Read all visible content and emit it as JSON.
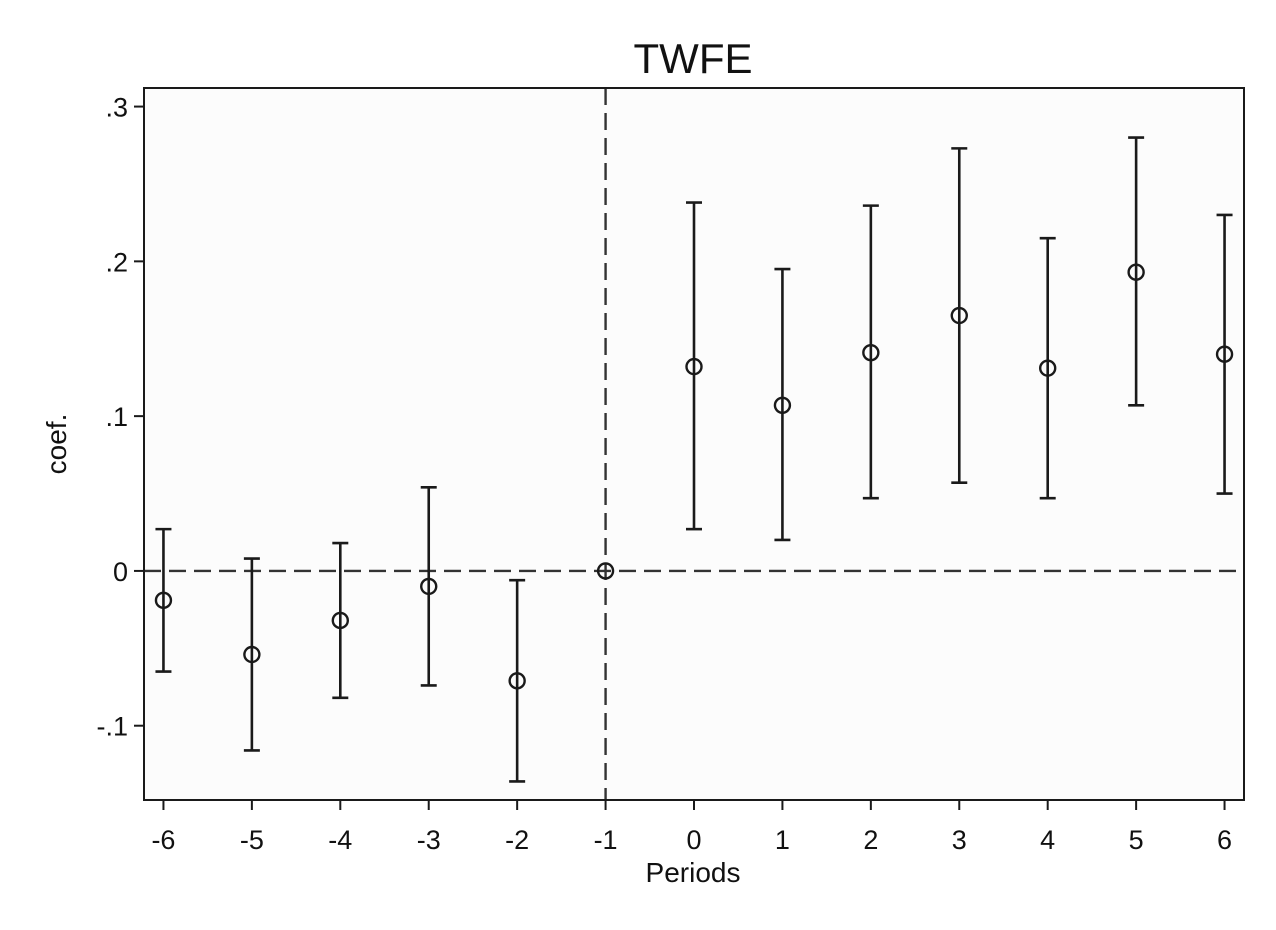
{
  "chart_data": {
    "type": "scatter",
    "title": "TWFE",
    "xlabel": "Periods",
    "ylabel": "coef.",
    "x": [
      -6,
      -5,
      -4,
      -3,
      -2,
      -1,
      0,
      1,
      2,
      3,
      4,
      5,
      6
    ],
    "series": [
      {
        "values": [
          -0.019,
          -0.054,
          -0.032,
          -0.01,
          -0.071,
          0.0,
          0.132,
          0.107,
          0.141,
          0.165,
          0.131,
          0.193,
          0.14
        ],
        "ci_lower": [
          -0.065,
          -0.116,
          -0.082,
          -0.074,
          -0.136,
          0.0,
          0.027,
          0.02,
          0.047,
          0.057,
          0.047,
          0.107,
          0.05
        ],
        "ci_upper": [
          0.027,
          0.008,
          0.018,
          0.054,
          -0.006,
          0.0,
          0.238,
          0.195,
          0.236,
          0.273,
          0.215,
          0.28,
          0.23
        ]
      }
    ],
    "xticks": [
      -6,
      -5,
      -4,
      -3,
      -2,
      -1,
      0,
      1,
      2,
      3,
      4,
      5,
      6
    ],
    "xtick_labels": [
      "-6",
      "-5",
      "-4",
      "-3",
      "-2",
      "-1",
      "0",
      "1",
      "2",
      "3",
      "4",
      "5",
      "6"
    ],
    "yticks": [
      -0.1,
      0,
      0.1,
      0.2,
      0.3
    ],
    "ytick_labels": [
      "-.1",
      "0",
      ".1",
      ".2",
      ".3"
    ],
    "xlim": [
      -6.22,
      6.22
    ],
    "ylim": [
      -0.148,
      0.312
    ],
    "reference_lines": [
      {
        "axis": "y",
        "value": 0,
        "style": "dashed"
      },
      {
        "axis": "x",
        "value": -1,
        "style": "dashed"
      }
    ],
    "grid": false,
    "legend": "none",
    "colors": {
      "marker": "#1a1a1a",
      "plot_background": "#fcfcfc",
      "frame": "#1a1a1a"
    }
  }
}
